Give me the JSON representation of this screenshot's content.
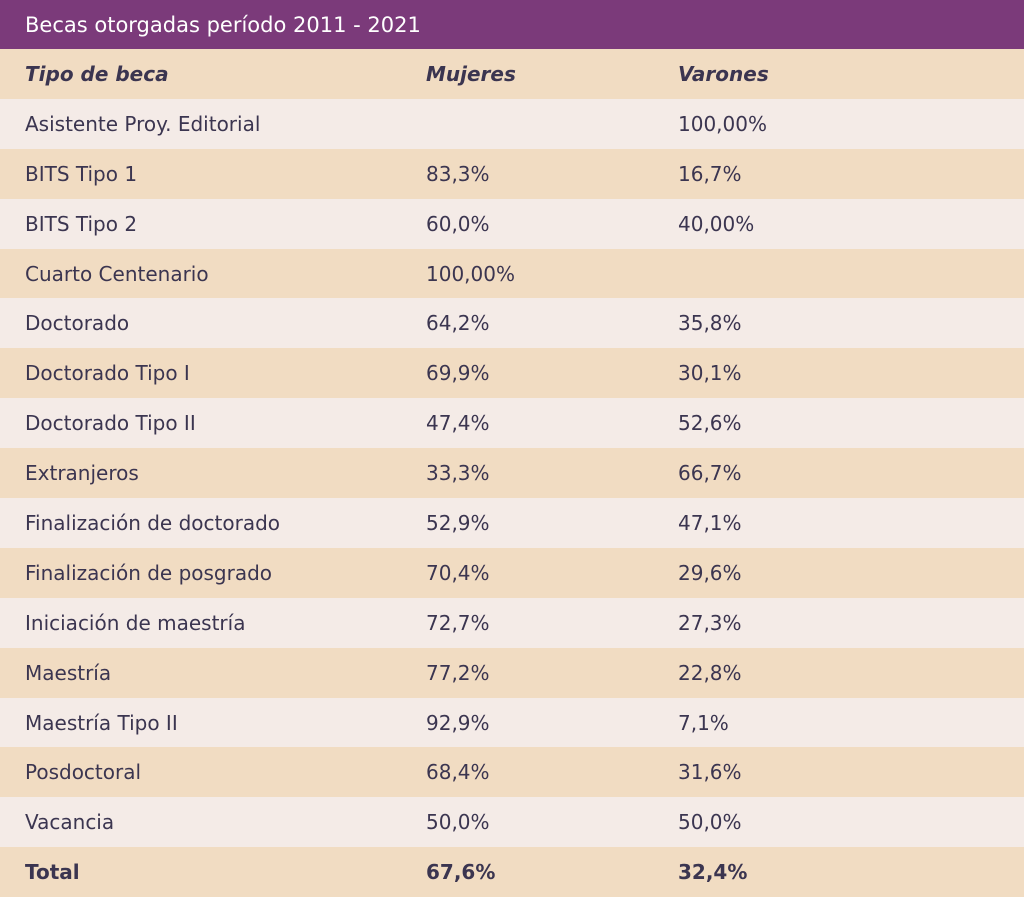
{
  "title": "Becas otorgadas período 2011 - 2021",
  "columns": [
    "Tipo de beca",
    "Mujeres",
    "Varones"
  ],
  "rows": [
    {
      "tipo": "Asistente Proy. Editorial",
      "mujeres": "",
      "varones": "100,00%"
    },
    {
      "tipo": "BITS Tipo 1",
      "mujeres": "83,3%",
      "varones": "16,7%"
    },
    {
      "tipo": "BITS Tipo 2",
      "mujeres": "60,0%",
      "varones": "40,00%"
    },
    {
      "tipo": "Cuarto Centenario",
      "mujeres": "100,00%",
      "varones": ""
    },
    {
      "tipo": "Doctorado",
      "mujeres": "64,2%",
      "varones": "35,8%"
    },
    {
      "tipo": "Doctorado Tipo I",
      "mujeres": "69,9%",
      "varones": "30,1%"
    },
    {
      "tipo": "Doctorado Tipo II",
      "mujeres": "47,4%",
      "varones": "52,6%"
    },
    {
      "tipo": "Extranjeros",
      "mujeres": "33,3%",
      "varones": "66,7%"
    },
    {
      "tipo": "Finalización de doctorado",
      "mujeres": "52,9%",
      "varones": "47,1%"
    },
    {
      "tipo": "Finalización de posgrado",
      "mujeres": "70,4%",
      "varones": "29,6%"
    },
    {
      "tipo": "Iniciación de maestría",
      "mujeres": "72,7%",
      "varones": "27,3%"
    },
    {
      "tipo": "Maestría",
      "mujeres": "77,2%",
      "varones": "22,8%"
    },
    {
      "tipo": "Maestría Tipo II",
      "mujeres": "92,9%",
      "varones": "7,1%"
    },
    {
      "tipo": "Posdoctoral",
      "mujeres": "68,4%",
      "varones": "31,6%"
    },
    {
      "tipo": "Vacancia",
      "mujeres": "50,0%",
      "varones": "50,0%"
    }
  ],
  "total": {
    "label": "Total",
    "mujeres": "67,6%",
    "varones": "32,4%"
  },
  "colors": {
    "title_bar": "#7b3a7a",
    "header_row": "#f1dcc2",
    "row_light": "#f4ebe7",
    "row_dark": "#f1dcc2",
    "text": "#3b3550"
  }
}
